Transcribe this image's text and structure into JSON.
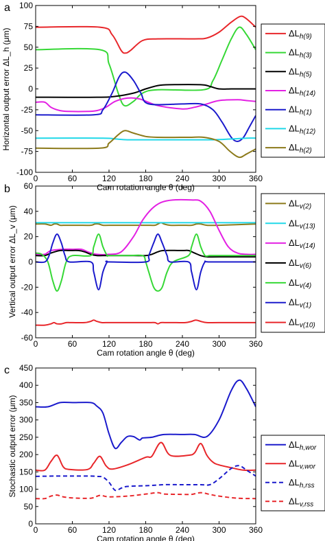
{
  "chart_data": [
    {
      "type": "line",
      "panel_label": "a",
      "xlabel": "Cam rotation angle θ (deg)",
      "ylabel": "Horizontal output error ΔL_h (μm)",
      "xlim": [
        0,
        360
      ],
      "ylim": [
        -100,
        100
      ],
      "xticks": [
        0,
        60,
        120,
        180,
        240,
        300,
        360
      ],
      "yticks": [
        -100,
        -75,
        -50,
        -25,
        0,
        25,
        50,
        75,
        100
      ],
      "grid": false,
      "legend_position": "right",
      "series": [
        {
          "name": "ΔL_h(9)",
          "base": "ΔL",
          "sub": "h(9)",
          "color": "#e8262a",
          "dash": false,
          "x": [
            0,
            105,
            125,
            140,
            147,
            155,
            175,
            200,
            260,
            280,
            300,
            320,
            335,
            345,
            360
          ],
          "y": [
            74,
            74,
            65,
            46,
            43,
            46,
            58,
            60,
            60,
            61,
            68,
            80,
            87,
            84,
            74
          ]
        },
        {
          "name": "ΔL_h(3)",
          "base": "ΔL",
          "sub": "h(3)",
          "color": "#35d835",
          "dash": false,
          "x": [
            0,
            105,
            120,
            135,
            145,
            160,
            175,
            200,
            275,
            290,
            305,
            320,
            333,
            345,
            360
          ],
          "y": [
            47,
            47,
            30,
            -5,
            -20,
            -15,
            -5,
            -1,
            -1,
            10,
            35,
            60,
            74,
            65,
            47
          ]
        },
        {
          "name": "ΔL_h(5)",
          "base": "ΔL",
          "sub": "h(5)",
          "color": "#000000",
          "dash": false,
          "x": [
            0,
            100,
            130,
            160,
            180,
            200,
            220,
            270,
            285,
            300,
            320,
            340,
            360
          ],
          "y": [
            -10,
            -10,
            -9,
            -5,
            0,
            4,
            5,
            5,
            3,
            0,
            0,
            0,
            0
          ]
        },
        {
          "name": "ΔL_h(14)",
          "base": "ΔL",
          "sub": "h(14)",
          "color": "#e320e3",
          "dash": false,
          "x": [
            0,
            15,
            25,
            40,
            55,
            85,
            100,
            115,
            130,
            150,
            170,
            200,
            240,
            260,
            280,
            300,
            330,
            345,
            360
          ],
          "y": [
            -16,
            -16,
            -22,
            -26,
            -27,
            -27,
            -26,
            -22,
            -15,
            -11,
            -12,
            -20,
            -24,
            -22,
            -18,
            -14,
            -13,
            -14,
            -15
          ]
        },
        {
          "name": "ΔL_h(1)",
          "base": "ΔL",
          "sub": "h(1)",
          "color": "#1a1acc",
          "dash": false,
          "x": [
            0,
            95,
            110,
            125,
            137,
            147,
            160,
            172,
            185,
            240,
            270,
            290,
            305,
            320,
            330,
            340,
            350,
            360
          ],
          "y": [
            -31,
            -31,
            -25,
            -5,
            15,
            20,
            10,
            -5,
            -18,
            -18,
            -18,
            -25,
            -40,
            -58,
            -63,
            -58,
            -45,
            -32
          ]
        },
        {
          "name": "ΔL_h(12)",
          "base": "ΔL",
          "sub": "h(12)",
          "color": "#20d8e8",
          "dash": false,
          "x": [
            0,
            110,
            130,
            150,
            180,
            250,
            290,
            320,
            345,
            360
          ],
          "y": [
            -59,
            -59,
            -60,
            -61,
            -61,
            -61,
            -61,
            -60,
            -59,
            -59
          ]
        },
        {
          "name": "ΔL_h(2)",
          "base": "ΔL",
          "sub": "h(2)",
          "color": "#8c7a1a",
          "dash": false,
          "x": [
            0,
            105,
            120,
            135,
            146,
            160,
            180,
            200,
            250,
            275,
            300,
            318,
            333,
            345,
            360
          ],
          "y": [
            -71,
            -71,
            -65,
            -55,
            -50,
            -53,
            -57,
            -58,
            -58,
            -58,
            -63,
            -75,
            -82,
            -78,
            -72
          ]
        }
      ]
    },
    {
      "type": "line",
      "panel_label": "b",
      "xlabel": "Cam rotation angle θ (deg)",
      "ylabel": "Vertical output error ΔL_v (μm)",
      "xlim": [
        0,
        360
      ],
      "ylim": [
        -60,
        60
      ],
      "xticks": [
        0,
        60,
        120,
        180,
        240,
        300,
        360
      ],
      "yticks": [
        -60,
        -40,
        -20,
        0,
        20,
        40,
        60
      ],
      "grid": false,
      "legend_position": "right",
      "series": [
        {
          "name": "ΔL_v(2)",
          "base": "ΔL",
          "sub": "v(2)",
          "color": "#8c7a1a",
          "dash": false,
          "x": [
            0,
            15,
            25,
            30,
            35,
            40,
            50,
            70,
            90,
            97,
            103,
            110,
            120,
            150,
            180,
            195,
            200,
            205,
            210,
            220,
            240,
            255,
            263,
            270,
            280,
            300,
            360
          ],
          "y": [
            30,
            30,
            29,
            30,
            30,
            29,
            29,
            29,
            29,
            30,
            30,
            29,
            29,
            29,
            29,
            29,
            30,
            31,
            30,
            29,
            29,
            29,
            30,
            30,
            29,
            29,
            30
          ]
        },
        {
          "name": "ΔL_v(13)",
          "base": "ΔL",
          "sub": "v(13)",
          "color": "#20d8e8",
          "dash": false,
          "x": [
            0,
            90,
            105,
            120,
            150,
            180,
            210,
            240,
            270,
            300,
            330,
            360
          ],
          "y": [
            31,
            31,
            31,
            31,
            31,
            31,
            31,
            31,
            31,
            31,
            31,
            31
          ]
        },
        {
          "name": "ΔL_v(14)",
          "base": "ΔL",
          "sub": "v(14)",
          "color": "#e320e3",
          "dash": false,
          "x": [
            0,
            15,
            25,
            45,
            60,
            75,
            85,
            100,
            120,
            140,
            160,
            175,
            190,
            205,
            225,
            255,
            270,
            285,
            300,
            315,
            330,
            345,
            360
          ],
          "y": [
            6,
            6,
            9,
            10,
            10,
            10,
            8,
            6,
            6,
            8,
            20,
            33,
            42,
            47,
            49,
            49,
            48,
            40,
            25,
            12,
            7,
            6,
            6
          ]
        },
        {
          "name": "ΔL_v(6)",
          "base": "ΔL",
          "sub": "v(6)",
          "color": "#000000",
          "dash": false,
          "x": [
            0,
            15,
            25,
            40,
            55,
            70,
            80,
            90,
            100,
            110,
            130,
            160,
            180,
            190,
            200,
            210,
            240,
            250,
            260,
            270,
            280,
            300,
            360
          ],
          "y": [
            5,
            5,
            7,
            9,
            9,
            9,
            8,
            6,
            5,
            5,
            5,
            5,
            5,
            6,
            8,
            9,
            9,
            9,
            7,
            5,
            4,
            4,
            4
          ]
        },
        {
          "name": "ΔL_v(4)",
          "base": "ΔL",
          "sub": "v(4)",
          "color": "#35d835",
          "dash": false,
          "x": [
            0,
            10,
            20,
            28,
            35,
            42,
            50,
            60,
            90,
            95,
            103,
            110,
            117,
            120,
            150,
            175,
            180,
            185,
            193,
            200,
            207,
            215,
            225,
            250,
            255,
            263,
            270,
            277,
            285,
            300,
            360
          ],
          "y": [
            7,
            6,
            0,
            -15,
            -23,
            -15,
            0,
            5,
            5,
            12,
            22,
            12,
            5,
            5,
            5,
            5,
            0,
            -8,
            -20,
            -23,
            -20,
            -8,
            0,
            5,
            12,
            22,
            12,
            5,
            5,
            5,
            5
          ]
        },
        {
          "name": "ΔL_v(1)",
          "base": "ΔL",
          "sub": "v(1)",
          "color": "#1a1acc",
          "dash": false,
          "x": [
            0,
            15,
            22,
            28,
            35,
            42,
            48,
            55,
            90,
            95,
            103,
            110,
            117,
            120,
            180,
            185,
            193,
            200,
            207,
            215,
            220,
            250,
            255,
            263,
            270,
            277,
            285,
            360
          ],
          "y": [
            0,
            0,
            5,
            15,
            22,
            15,
            5,
            0,
            0,
            -8,
            -22,
            -8,
            0,
            0,
            0,
            5,
            15,
            22,
            15,
            5,
            0,
            0,
            -8,
            -22,
            -8,
            0,
            0,
            0
          ]
        },
        {
          "name": "ΔL_v(10)",
          "base": "ΔL",
          "sub": "v(10)",
          "color": "#e8262a",
          "dash": false,
          "x": [
            0,
            15,
            25,
            30,
            35,
            42,
            50,
            60,
            80,
            90,
            95,
            100,
            108,
            115,
            140,
            170,
            185,
            195,
            200,
            205,
            215,
            230,
            245,
            255,
            262,
            270,
            280,
            300,
            360
          ],
          "y": [
            -50,
            -50,
            -49,
            -48,
            -49,
            -49,
            -48,
            -48,
            -48,
            -47,
            -46,
            -47,
            -48,
            -48,
            -48,
            -48,
            -48,
            -48,
            -49,
            -48,
            -48,
            -48,
            -48,
            -47,
            -46,
            -47,
            -48,
            -48,
            -48
          ]
        }
      ]
    },
    {
      "type": "line",
      "panel_label": "c",
      "xlabel": "Cam rotation angle θ (deg)",
      "ylabel": "Stochastic output error (μm)",
      "xlim": [
        0,
        360
      ],
      "ylim": [
        0,
        450
      ],
      "xticks": [
        0,
        60,
        120,
        180,
        240,
        300,
        360
      ],
      "yticks": [
        0,
        50,
        100,
        150,
        200,
        250,
        300,
        350,
        400,
        450
      ],
      "grid": false,
      "legend_position": "right",
      "series": [
        {
          "name": "ΔL_h,wor",
          "base": "ΔL",
          "sub": "h,wor",
          "color": "#1a1acc",
          "dash": false,
          "x": [
            0,
            20,
            40,
            60,
            90,
            100,
            110,
            120,
            130,
            140,
            150,
            160,
            170,
            175,
            190,
            210,
            240,
            260,
            280,
            300,
            320,
            333,
            345,
            360
          ],
          "y": [
            338,
            338,
            350,
            350,
            350,
            340,
            320,
            260,
            218,
            235,
            252,
            252,
            242,
            248,
            250,
            258,
            258,
            258,
            252,
            300,
            385,
            415,
            390,
            338
          ]
        },
        {
          "name": "ΔL_v,wor",
          "base": "ΔL",
          "sub": "v,wor",
          "color": "#e8262a",
          "dash": false,
          "x": [
            0,
            15,
            25,
            35,
            45,
            55,
            85,
            95,
            105,
            115,
            125,
            150,
            180,
            190,
            205,
            220,
            250,
            260,
            270,
            280,
            290,
            300,
            320,
            340,
            360
          ],
          "y": [
            155,
            155,
            180,
            198,
            165,
            157,
            157,
            175,
            195,
            168,
            158,
            170,
            192,
            195,
            235,
            198,
            198,
            205,
            232,
            198,
            178,
            170,
            162,
            155,
            155
          ]
        },
        {
          "name": "ΔL_h,rss",
          "base": "ΔL",
          "sub": "h,rss",
          "color": "#1a1acc",
          "dash": true,
          "x": [
            0,
            30,
            60,
            90,
            100,
            110,
            120,
            130,
            140,
            150,
            180,
            210,
            240,
            270,
            285,
            300,
            320,
            333,
            345,
            360
          ],
          "y": [
            137,
            138,
            138,
            138,
            137,
            135,
            120,
            97,
            103,
            108,
            110,
            113,
            113,
            113,
            113,
            130,
            160,
            168,
            155,
            138
          ]
        },
        {
          "name": "ΔL_v,rss",
          "base": "ΔL",
          "sub": "v,rss",
          "color": "#e8262a",
          "dash": true,
          "x": [
            0,
            15,
            25,
            35,
            45,
            60,
            90,
            105,
            120,
            150,
            180,
            200,
            210,
            240,
            255,
            270,
            285,
            300,
            330,
            360
          ],
          "y": [
            73,
            73,
            80,
            83,
            78,
            75,
            74,
            82,
            78,
            80,
            86,
            90,
            86,
            85,
            85,
            90,
            85,
            80,
            74,
            73
          ]
        }
      ]
    }
  ]
}
